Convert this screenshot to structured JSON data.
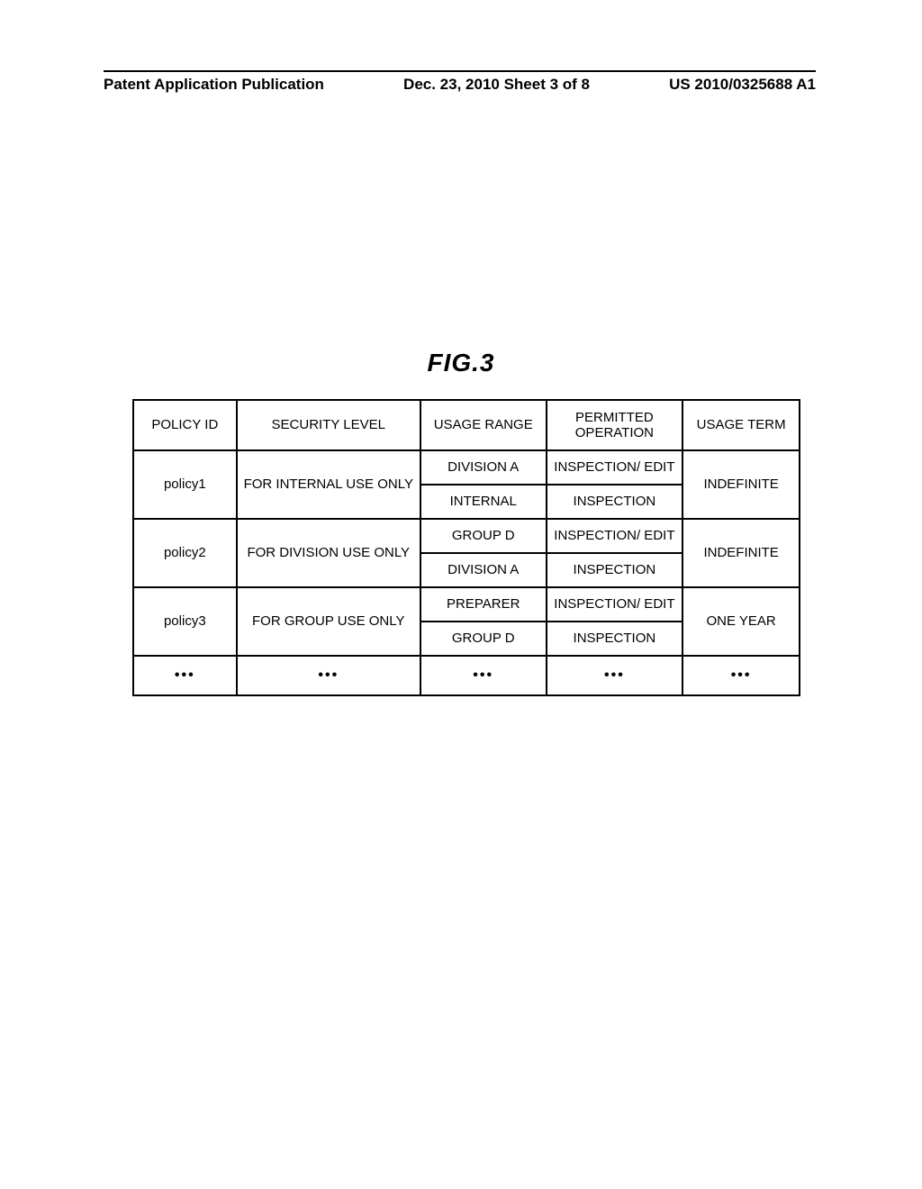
{
  "header": {
    "left": "Patent Application Publication",
    "center": "Dec. 23, 2010  Sheet 3 of 8",
    "right": "US 2010/0325688 A1"
  },
  "figure_label": "FIG.3",
  "table": {
    "columns": {
      "policy_id": "POLICY ID",
      "security_level": "SECURITY LEVEL",
      "usage_range": "USAGE RANGE",
      "permitted_operation": "PERMITTED OPERATION",
      "usage_term": "USAGE TERM"
    },
    "rows": [
      {
        "policy_id": "policy1",
        "security_level": "FOR INTERNAL USE ONLY",
        "usage_term": "INDEFINITE",
        "sub": [
          {
            "usage_range": "DIVISION A",
            "permitted_operation": "INSPECTION/ EDIT"
          },
          {
            "usage_range": "INTERNAL",
            "permitted_operation": "INSPECTION"
          }
        ]
      },
      {
        "policy_id": "policy2",
        "security_level": "FOR DIVISION USE ONLY",
        "usage_term": "INDEFINITE",
        "sub": [
          {
            "usage_range": "GROUP D",
            "permitted_operation": "INSPECTION/ EDIT"
          },
          {
            "usage_range": "DIVISION A",
            "permitted_operation": "INSPECTION"
          }
        ]
      },
      {
        "policy_id": "policy3",
        "security_level": "FOR GROUP USE ONLY",
        "usage_term": "ONE YEAR",
        "sub": [
          {
            "usage_range": "PREPARER",
            "permitted_operation": "INSPECTION/ EDIT"
          },
          {
            "usage_range": "GROUP D",
            "permitted_operation": "INSPECTION"
          }
        ]
      }
    ],
    "ellipsis": "•••"
  }
}
